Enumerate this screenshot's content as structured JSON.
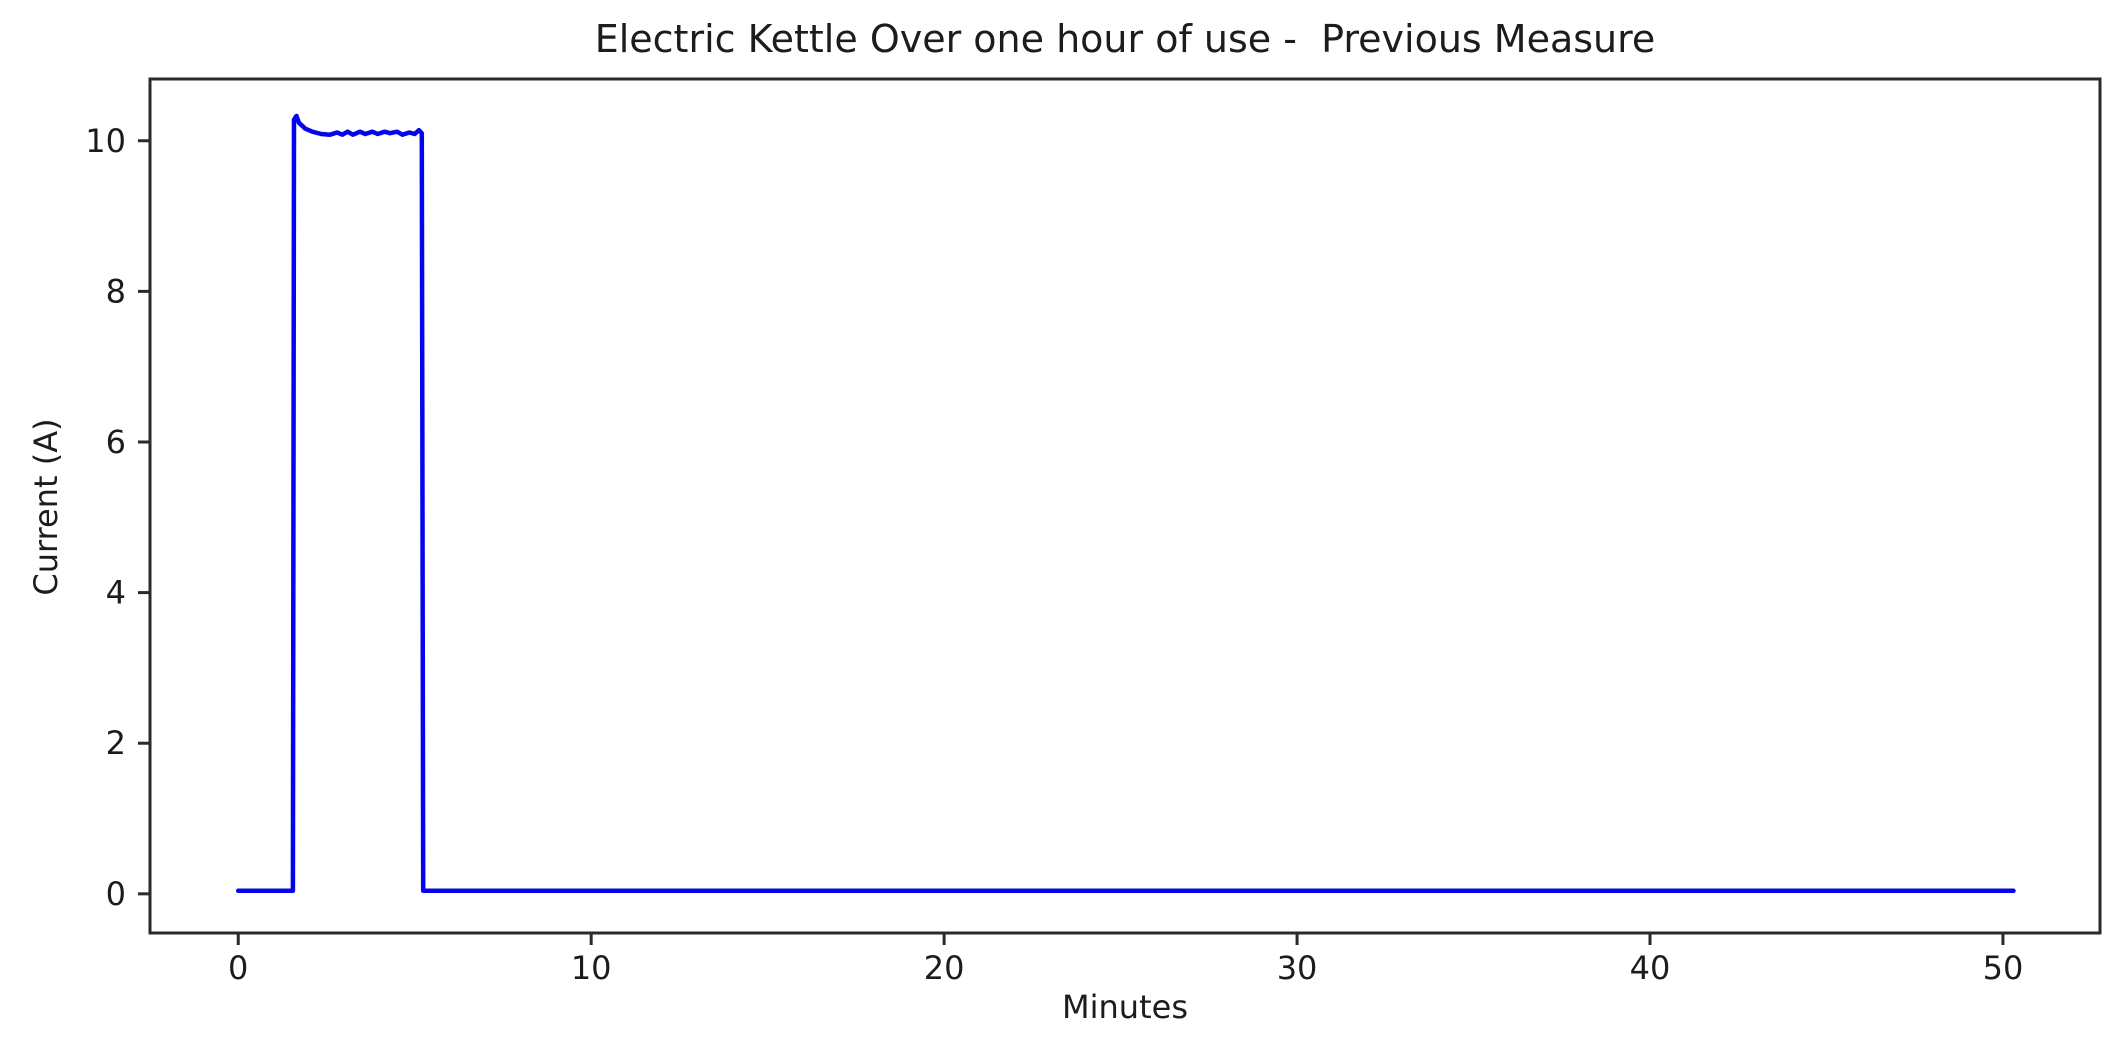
{
  "figure": {
    "background_color": "#ffffff",
    "text_color": "#1c1c1c",
    "axis_color": "#2a2a2a"
  },
  "chart_data": {
    "type": "line",
    "title": "Electric Kettle Over one hour of use -  Previous Measure",
    "xlabel": "Minutes",
    "ylabel": "Current (A)",
    "xlim": [
      -2.5,
      52.75
    ],
    "ylim": [
      -0.52,
      10.82
    ],
    "x_ticks": [
      0,
      10,
      20,
      30,
      40,
      50
    ],
    "y_ticks": [
      0,
      2,
      4,
      6,
      8,
      10
    ],
    "grid": false,
    "legend_position": "none",
    "line_color": "#0404ee",
    "line_width": 4.5,
    "series": [
      {
        "name": "Previous Measure",
        "points": [
          [
            0.0,
            0.04
          ],
          [
            1.55,
            0.04
          ],
          [
            1.58,
            10.28
          ],
          [
            1.65,
            10.33
          ],
          [
            1.72,
            10.24
          ],
          [
            1.9,
            10.16
          ],
          [
            2.1,
            10.12
          ],
          [
            2.35,
            10.09
          ],
          [
            2.6,
            10.08
          ],
          [
            2.8,
            10.11
          ],
          [
            2.95,
            10.08
          ],
          [
            3.1,
            10.12
          ],
          [
            3.25,
            10.08
          ],
          [
            3.45,
            10.12
          ],
          [
            3.6,
            10.09
          ],
          [
            3.8,
            10.12
          ],
          [
            3.95,
            10.09
          ],
          [
            4.15,
            10.12
          ],
          [
            4.3,
            10.1
          ],
          [
            4.5,
            10.12
          ],
          [
            4.65,
            10.08
          ],
          [
            4.85,
            10.11
          ],
          [
            5.0,
            10.09
          ],
          [
            5.12,
            10.14
          ],
          [
            5.2,
            10.1
          ],
          [
            5.24,
            0.04
          ],
          [
            50.3,
            0.04
          ]
        ]
      }
    ]
  }
}
